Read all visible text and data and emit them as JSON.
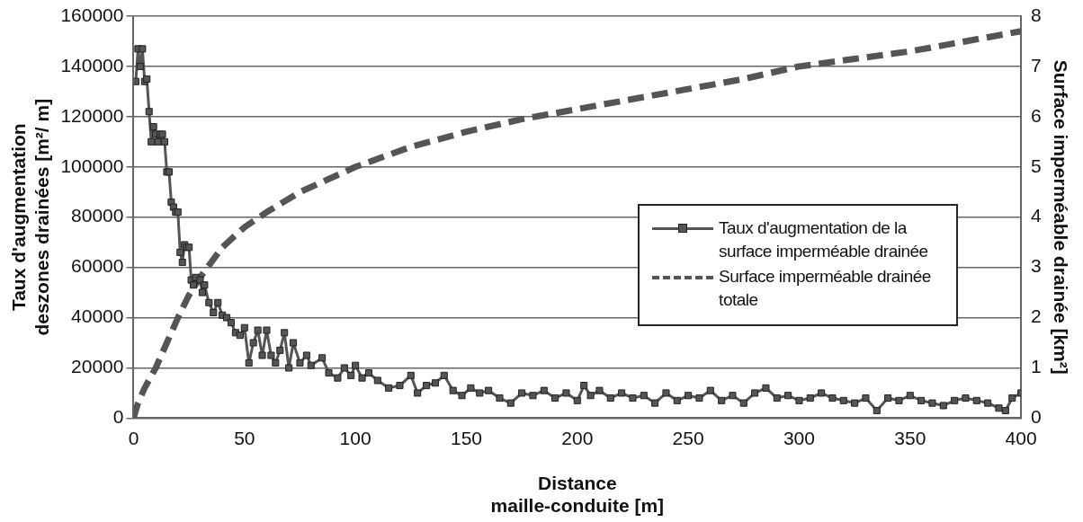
{
  "chart_data": {
    "type": "line",
    "xlabel": "Distance maille-conduite [m]",
    "ylabel": "Taux d'augmentation deszones drainées [m²/ m]",
    "y2label": "Surface imperméable drainée [km²]",
    "xlim": [
      0,
      400
    ],
    "xticks": [
      0,
      50,
      100,
      150,
      200,
      250,
      300,
      350,
      400
    ],
    "ylim": [
      0,
      160000
    ],
    "yticks": [
      0,
      20000,
      40000,
      60000,
      80000,
      100000,
      120000,
      140000,
      160000
    ],
    "y2lim": [
      0,
      8
    ],
    "y2ticks": [
      0,
      1,
      2,
      3,
      4,
      5,
      6,
      7,
      8
    ],
    "grid": "y",
    "legend": "right",
    "series": [
      {
        "name": "Taux d'augmentation de la surface imperméable drainée",
        "color": "#555555",
        "marker": "square",
        "line_style": "solid",
        "x": [
          1,
          2,
          3,
          4,
          5,
          6,
          7,
          8,
          9,
          10,
          11,
          12,
          13,
          14,
          15,
          16,
          17,
          18,
          19,
          20,
          21,
          22,
          23,
          24,
          25,
          26,
          27,
          28,
          30,
          31,
          32,
          34,
          36,
          38,
          40,
          42,
          44,
          46,
          48,
          50,
          52,
          54,
          56,
          58,
          60,
          62,
          64,
          66,
          68,
          70,
          72,
          75,
          78,
          80,
          85,
          88,
          92,
          95,
          98,
          100,
          103,
          106,
          110,
          115,
          120,
          125,
          128,
          132,
          136,
          140,
          144,
          148,
          152,
          156,
          160,
          165,
          170,
          175,
          180,
          185,
          190,
          195,
          200,
          203,
          206,
          210,
          215,
          220,
          225,
          230,
          235,
          240,
          245,
          250,
          255,
          260,
          265,
          270,
          275,
          280,
          285,
          290,
          295,
          300,
          305,
          310,
          315,
          320,
          325,
          330,
          335,
          340,
          345,
          350,
          355,
          360,
          365,
          370,
          375,
          380,
          385,
          390,
          393,
          396,
          400
        ],
        "values": [
          134000,
          147000,
          140000,
          147000,
          134000,
          135000,
          122000,
          110000,
          116000,
          113000,
          110000,
          113000,
          113000,
          110000,
          98000,
          98000,
          86000,
          84000,
          82000,
          82000,
          66000,
          62000,
          69000,
          68000,
          68000,
          55000,
          53000,
          56000,
          55000,
          50000,
          53000,
          46000,
          42000,
          46000,
          41000,
          40000,
          38000,
          34000,
          33000,
          36000,
          22000,
          30000,
          35000,
          25000,
          35000,
          25000,
          22000,
          27000,
          34000,
          20000,
          30000,
          22000,
          25000,
          21000,
          24000,
          18000,
          16000,
          20000,
          17000,
          21000,
          16000,
          18000,
          15000,
          12000,
          13000,
          17000,
          10000,
          13000,
          14000,
          17000,
          11000,
          9000,
          12000,
          10000,
          11000,
          8000,
          6000,
          10000,
          9000,
          11000,
          8000,
          10000,
          7000,
          13000,
          9000,
          11000,
          8000,
          10000,
          8000,
          9000,
          6000,
          10000,
          7000,
          9000,
          8000,
          11000,
          7000,
          9000,
          6000,
          10000,
          12000,
          8000,
          9000,
          7000,
          8000,
          10000,
          8000,
          7000,
          6000,
          8000,
          3000,
          8000,
          7000,
          9000,
          7000,
          6000,
          5000,
          7000,
          8000,
          7000,
          6000,
          4000,
          3000,
          8000,
          10000
        ]
      },
      {
        "name": "Surface imperméable drainée totale",
        "color": "#555555",
        "marker": "none",
        "line_style": "dashed",
        "axis": "y2",
        "x": [
          0,
          2,
          5,
          10,
          15,
          20,
          25,
          30,
          40,
          50,
          60,
          75,
          100,
          125,
          150,
          175,
          200,
          225,
          250,
          275,
          300,
          325,
          350,
          375,
          400
        ],
        "values": [
          0,
          0.3,
          0.6,
          1.0,
          1.5,
          2.0,
          2.45,
          2.8,
          3.4,
          3.8,
          4.1,
          4.5,
          5.0,
          5.4,
          5.7,
          5.95,
          6.15,
          6.35,
          6.55,
          6.75,
          7.0,
          7.15,
          7.3,
          7.5,
          7.7
        ]
      }
    ]
  }
}
